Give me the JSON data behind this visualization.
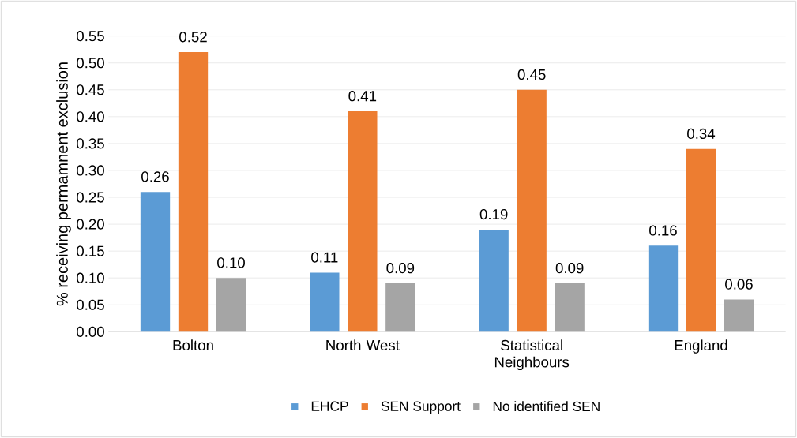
{
  "chart_data": {
    "type": "bar",
    "ylabel": "% receiving permamnent exclusion",
    "categories": [
      "Bolton",
      "North West",
      "Statistical Neighbours",
      "England"
    ],
    "series": [
      {
        "name": "EHCP",
        "color": "#5b9bd5",
        "values": [
          0.26,
          0.11,
          0.19,
          0.16
        ],
        "value_labels": [
          "0.26",
          "0.11",
          "0.19",
          "0.16"
        ]
      },
      {
        "name": "SEN Support",
        "color": "#ed7d31",
        "values": [
          0.52,
          0.41,
          0.45,
          0.34
        ],
        "value_labels": [
          "0.52",
          "0.41",
          "0.45",
          "0.34"
        ]
      },
      {
        "name": "No identified SEN",
        "color": "#a5a5a5",
        "values": [
          0.1,
          0.09,
          0.09,
          0.06
        ],
        "value_labels": [
          "0.10",
          "0.09",
          "0.09",
          "0.06"
        ]
      }
    ],
    "ylim": [
      0,
      0.55
    ],
    "yticks": [
      {
        "value": 0,
        "label": "0.00"
      },
      {
        "value": 0.05,
        "label": "0.05"
      },
      {
        "value": 0.1,
        "label": "0.10"
      },
      {
        "value": 0.15,
        "label": "0.15"
      },
      {
        "value": 0.2,
        "label": "0.20"
      },
      {
        "value": 0.25,
        "label": "0.25"
      },
      {
        "value": 0.3,
        "label": "0.30"
      },
      {
        "value": 0.35,
        "label": "0.35"
      },
      {
        "value": 0.4,
        "label": "0.40"
      },
      {
        "value": 0.45,
        "label": "0.45"
      },
      {
        "value": 0.5,
        "label": "0.50"
      },
      {
        "value": 0.55,
        "label": "0.55"
      }
    ],
    "grid": "y",
    "legend": "bottom"
  }
}
